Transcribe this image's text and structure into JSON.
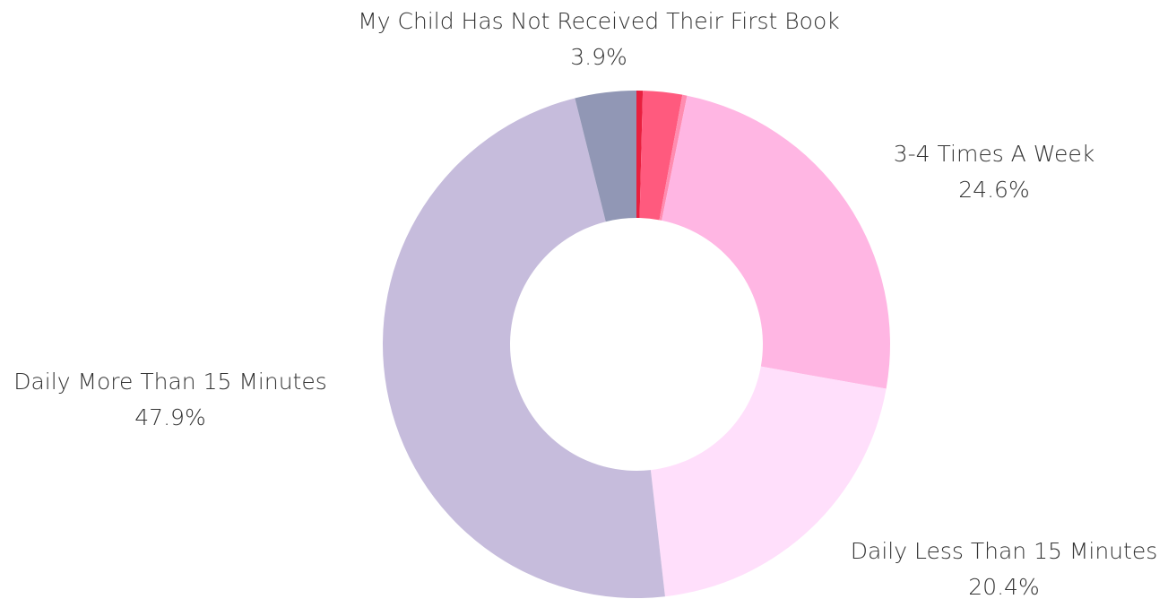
{
  "chart_data": {
    "type": "donut",
    "categories": [
      null,
      null,
      null,
      "3-4 Times A Week",
      "Daily Less Than 15 Minutes",
      "Daily More Than 15 Minutes",
      "My Child Has Not Received Their First Book"
    ],
    "values": [
      0.4,
      2.5,
      0.3,
      24.6,
      20.4,
      47.9,
      3.9
    ],
    "value_labels": [
      null,
      null,
      null,
      "24.6%",
      "20.4%",
      "47.9%",
      "3.9%"
    ],
    "colors": [
      "#e8203f",
      "#ff5a7e",
      "#ff8cb0",
      "#ffb6e3",
      "#ffdffb",
      "#c6bcdc",
      "#9197b5"
    ]
  }
}
